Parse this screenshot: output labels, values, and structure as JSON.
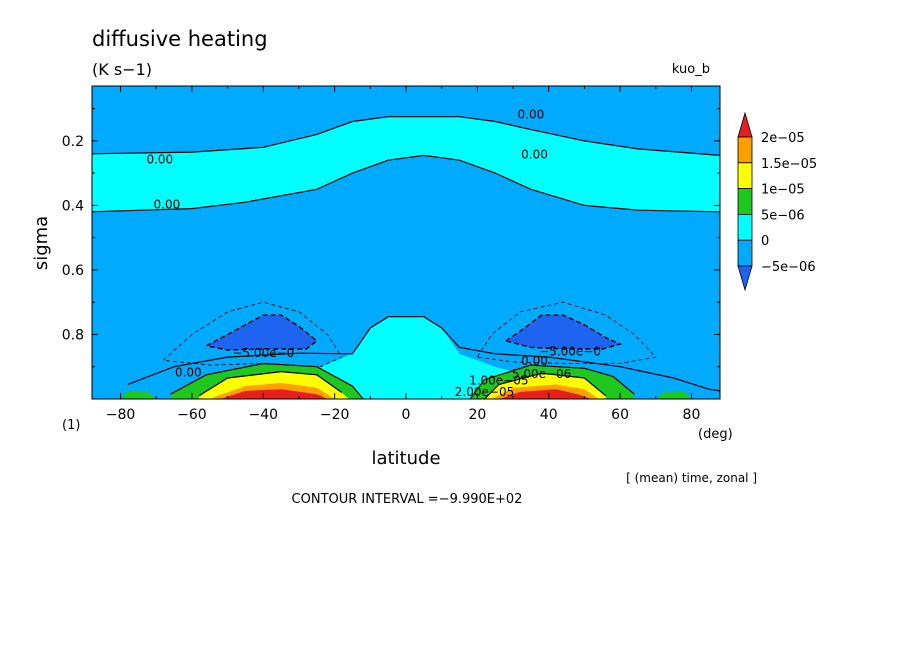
{
  "chart_data": {
    "type": "heatmap",
    "title": "diffusive heating",
    "units": "(K s−1)",
    "run_label": "kuo_b",
    "xlabel": "latitude",
    "x_unit": "(deg)",
    "ylabel": "sigma",
    "y_axis_note": "(1)",
    "xlim": [
      -88,
      88
    ],
    "ylim": [
      1.0,
      0.03
    ],
    "x_ticks": [
      -80,
      -60,
      -40,
      -20,
      0,
      20,
      40,
      60,
      80
    ],
    "x_tick_labels": [
      "−80",
      "−60",
      "−40",
      "−20",
      "0",
      "20",
      "40",
      "60",
      "80"
    ],
    "y_ticks": [
      0.2,
      0.4,
      0.6,
      0.8
    ],
    "y_tick_labels": [
      "0.2",
      "0.4",
      "0.6",
      "0.8"
    ],
    "averaging_note": "[ (mean) time, zonal ]",
    "contour_interval_text": "CONTOUR INTERVAL =−9.990E+02",
    "colorbar": {
      "labels": [
        "2e−05",
        "1.5e−05",
        "1e−05",
        "5e−06",
        "0",
        "−5e−06"
      ],
      "levels": [
        -5e-06,
        0,
        5e-06,
        1e-05,
        1.5e-05,
        2e-05
      ],
      "colors": [
        "#1e64f0",
        "#00aaff",
        "#00ffff",
        "#1ec81e",
        "#ffff00",
        "#ffa000",
        "#e61e1e"
      ]
    },
    "regions": [
      {
        "level": "0 to 5e-06",
        "color": "#00ffff",
        "upper": [
          [
            -88,
            0.24
          ],
          [
            -60,
            0.235
          ],
          [
            -40,
            0.22
          ],
          [
            -25,
            0.18
          ],
          [
            -15,
            0.14
          ],
          [
            -5,
            0.125
          ],
          [
            5,
            0.125
          ],
          [
            15,
            0.125
          ],
          [
            25,
            0.14
          ],
          [
            35,
            0.165
          ],
          [
            50,
            0.2
          ],
          [
            65,
            0.225
          ],
          [
            88,
            0.245
          ]
        ],
        "lower": [
          [
            -88,
            0.42
          ],
          [
            -60,
            0.41
          ],
          [
            -45,
            0.39
          ],
          [
            -25,
            0.35
          ],
          [
            -15,
            0.3
          ],
          [
            -5,
            0.26
          ],
          [
            5,
            0.245
          ],
          [
            15,
            0.26
          ],
          [
            25,
            0.3
          ],
          [
            35,
            0.35
          ],
          [
            50,
            0.4
          ],
          [
            65,
            0.415
          ],
          [
            88,
            0.42
          ]
        ]
      },
      {
        "level": "0 to 5e-06",
        "color": "#00ffff",
        "outline": [
          [
            -60,
            0.985
          ],
          [
            -40,
            0.955
          ],
          [
            -25,
            0.905
          ],
          [
            -15,
            0.86
          ],
          [
            -10,
            0.78
          ],
          [
            -5,
            0.745
          ],
          [
            5,
            0.745
          ],
          [
            10,
            0.78
          ],
          [
            15,
            0.86
          ],
          [
            25,
            0.9
          ],
          [
            40,
            0.945
          ],
          [
            60,
            0.985
          ],
          [
            60,
            1.0
          ],
          [
            -60,
            1.0
          ]
        ]
      },
      {
        "level": "below -5e-06",
        "color": "#1e64f0",
        "outline": [
          [
            -56,
            0.835
          ],
          [
            -50,
            0.8
          ],
          [
            -45,
            0.77
          ],
          [
            -40,
            0.74
          ],
          [
            -35,
            0.74
          ],
          [
            -30,
            0.775
          ],
          [
            -25,
            0.82
          ],
          [
            -28,
            0.845
          ],
          [
            -40,
            0.845
          ],
          [
            -50,
            0.848
          ]
        ]
      },
      {
        "level": "below -5e-06",
        "color": "#1e64f0",
        "outline": [
          [
            28,
            0.82
          ],
          [
            32,
            0.79
          ],
          [
            38,
            0.74
          ],
          [
            44,
            0.74
          ],
          [
            50,
            0.77
          ],
          [
            56,
            0.81
          ],
          [
            60,
            0.83
          ],
          [
            55,
            0.845
          ],
          [
            45,
            0.845
          ],
          [
            35,
            0.84
          ]
        ]
      },
      {
        "level": "5e-06 to 1e-05",
        "color": "#1ec81e",
        "outline": [
          [
            -66,
            0.985
          ],
          [
            -56,
            0.925
          ],
          [
            -40,
            0.89
          ],
          [
            -25,
            0.9
          ],
          [
            -15,
            0.96
          ],
          [
            -12,
            1.0
          ],
          [
            -66,
            1.0
          ]
        ]
      },
      {
        "level": "5e-06 to 1e-05",
        "color": "#1ec81e",
        "outline": [
          [
            18,
            1.0
          ],
          [
            22,
            0.94
          ],
          [
            35,
            0.895
          ],
          [
            50,
            0.905
          ],
          [
            58,
            0.93
          ],
          [
            64,
            0.985
          ],
          [
            64,
            1.0
          ]
        ]
      },
      {
        "level": "1e-05 to 1.5e-05",
        "color": "#ffff00",
        "outline": [
          [
            -58,
            0.99
          ],
          [
            -50,
            0.935
          ],
          [
            -35,
            0.915
          ],
          [
            -25,
            0.925
          ],
          [
            -18,
            0.98
          ],
          [
            -16,
            1.0
          ],
          [
            -58,
            1.0
          ]
        ]
      },
      {
        "level": "1e-05 to 1.5e-05",
        "color": "#ffff00",
        "outline": [
          [
            22,
            1.0
          ],
          [
            26,
            0.955
          ],
          [
            38,
            0.92
          ],
          [
            50,
            0.935
          ],
          [
            56,
            0.99
          ],
          [
            56,
            1.0
          ]
        ]
      },
      {
        "level": "1.5e-05 to 2e-05",
        "color": "#ffa000",
        "outline": [
          [
            -54,
            0.995
          ],
          [
            -45,
            0.96
          ],
          [
            -35,
            0.95
          ],
          [
            -25,
            0.965
          ],
          [
            -20,
            1.0
          ],
          [
            -54,
            1.0
          ]
        ]
      },
      {
        "level": "1.5e-05 to 2e-05",
        "color": "#ffa000",
        "outline": [
          [
            24,
            1.0
          ],
          [
            30,
            0.965
          ],
          [
            42,
            0.955
          ],
          [
            50,
            0.97
          ],
          [
            54,
            1.0
          ]
        ]
      },
      {
        "level": "above 2e-05",
        "color": "#e61e1e",
        "outline": [
          [
            -52,
            1.0
          ],
          [
            -45,
            0.975
          ],
          [
            -35,
            0.97
          ],
          [
            -25,
            0.985
          ],
          [
            -22,
            1.0
          ]
        ]
      },
      {
        "level": "above 2e-05",
        "color": "#e61e1e",
        "outline": [
          [
            26,
            1.0
          ],
          [
            32,
            0.978
          ],
          [
            42,
            0.97
          ],
          [
            48,
            0.985
          ],
          [
            52,
            1.0
          ]
        ]
      },
      {
        "level": "5e-06 to 1e-05",
        "color": "#1ec81e",
        "outline": [
          [
            -80,
            1.0
          ],
          [
            -78,
            0.975
          ],
          [
            -72,
            0.98
          ],
          [
            -70,
            1.0
          ]
        ]
      },
      {
        "level": "5e-06 to 1e-05",
        "color": "#1ec81e",
        "outline": [
          [
            70,
            1.0
          ],
          [
            72,
            0.98
          ],
          [
            78,
            0.978
          ],
          [
            80,
            1.0
          ]
        ]
      }
    ],
    "contours": [
      {
        "style": "solid",
        "points": [
          [
            -88,
            0.24
          ],
          [
            -60,
            0.235
          ],
          [
            -40,
            0.22
          ],
          [
            -25,
            0.18
          ],
          [
            -15,
            0.14
          ],
          [
            -5,
            0.125
          ],
          [
            5,
            0.125
          ],
          [
            15,
            0.125
          ],
          [
            25,
            0.14
          ],
          [
            35,
            0.165
          ],
          [
            50,
            0.2
          ],
          [
            65,
            0.225
          ],
          [
            88,
            0.245
          ]
        ]
      },
      {
        "style": "solid",
        "points": [
          [
            -88,
            0.42
          ],
          [
            -60,
            0.41
          ],
          [
            -45,
            0.39
          ],
          [
            -25,
            0.35
          ],
          [
            -15,
            0.3
          ],
          [
            -5,
            0.26
          ],
          [
            5,
            0.245
          ],
          [
            15,
            0.26
          ],
          [
            25,
            0.3
          ],
          [
            35,
            0.35
          ],
          [
            50,
            0.4
          ],
          [
            65,
            0.415
          ],
          [
            88,
            0.42
          ]
        ]
      },
      {
        "style": "solid",
        "points": [
          [
            -78,
            0.955
          ],
          [
            -65,
            0.9
          ],
          [
            -50,
            0.87
          ],
          [
            -30,
            0.858
          ],
          [
            -15,
            0.86
          ],
          [
            -10,
            0.78
          ],
          [
            -5,
            0.745
          ],
          [
            5,
            0.745
          ],
          [
            10,
            0.78
          ],
          [
            15,
            0.84
          ],
          [
            25,
            0.86
          ],
          [
            40,
            0.87
          ],
          [
            60,
            0.9
          ],
          [
            75,
            0.935
          ],
          [
            85,
            0.97
          ],
          [
            88,
            0.975
          ]
        ]
      },
      {
        "style": "dashed",
        "points": [
          [
            -56,
            0.835
          ],
          [
            -50,
            0.8
          ],
          [
            -45,
            0.77
          ],
          [
            -40,
            0.74
          ],
          [
            -35,
            0.74
          ],
          [
            -30,
            0.775
          ],
          [
            -25,
            0.82
          ],
          [
            -28,
            0.845
          ],
          [
            -40,
            0.845
          ],
          [
            -50,
            0.848
          ],
          [
            -56,
            0.835
          ]
        ]
      },
      {
        "style": "dashed",
        "points": [
          [
            28,
            0.82
          ],
          [
            32,
            0.79
          ],
          [
            38,
            0.74
          ],
          [
            44,
            0.74
          ],
          [
            50,
            0.77
          ],
          [
            56,
            0.81
          ],
          [
            60,
            0.83
          ],
          [
            55,
            0.845
          ],
          [
            45,
            0.845
          ],
          [
            35,
            0.84
          ],
          [
            28,
            0.82
          ]
        ]
      },
      {
        "style": "dashed-thin",
        "points": [
          [
            -68,
            0.88
          ],
          [
            -60,
            0.8
          ],
          [
            -50,
            0.73
          ],
          [
            -40,
            0.7
          ],
          [
            -30,
            0.73
          ],
          [
            -22,
            0.8
          ],
          [
            -18,
            0.87
          ],
          [
            -24,
            0.9
          ],
          [
            -40,
            0.89
          ],
          [
            -55,
            0.895
          ],
          [
            -68,
            0.88
          ]
        ]
      },
      {
        "style": "dashed-thin",
        "points": [
          [
            20,
            0.87
          ],
          [
            24,
            0.8
          ],
          [
            32,
            0.73
          ],
          [
            44,
            0.7
          ],
          [
            56,
            0.74
          ],
          [
            64,
            0.8
          ],
          [
            70,
            0.87
          ],
          [
            60,
            0.89
          ],
          [
            45,
            0.89
          ],
          [
            30,
            0.885
          ],
          [
            20,
            0.87
          ]
        ]
      },
      {
        "style": "solid",
        "points": [
          [
            -66,
            0.985
          ],
          [
            -56,
            0.925
          ],
          [
            -40,
            0.89
          ],
          [
            -25,
            0.9
          ],
          [
            -15,
            0.96
          ],
          [
            -12,
            1.0
          ]
        ]
      },
      {
        "style": "solid",
        "points": [
          [
            18,
            1.0
          ],
          [
            22,
            0.94
          ],
          [
            35,
            0.895
          ],
          [
            50,
            0.905
          ],
          [
            58,
            0.93
          ],
          [
            64,
            0.985
          ]
        ]
      },
      {
        "style": "solid",
        "points": [
          [
            -58,
            0.99
          ],
          [
            -50,
            0.935
          ],
          [
            -35,
            0.915
          ],
          [
            -25,
            0.925
          ],
          [
            -18,
            0.98
          ]
        ]
      },
      {
        "style": "solid",
        "points": [
          [
            22,
            1.0
          ],
          [
            26,
            0.955
          ],
          [
            38,
            0.92
          ],
          [
            50,
            0.935
          ],
          [
            56,
            0.99
          ]
        ]
      }
    ],
    "contour_labels": [
      {
        "text": "0.00",
        "x": -69,
        "y": 0.27
      },
      {
        "text": "0.00",
        "x": -67,
        "y": 0.41
      },
      {
        "text": "0.00",
        "x": 35,
        "y": 0.13
      },
      {
        "text": "0.00",
        "x": 36,
        "y": 0.255
      },
      {
        "text": "0.00",
        "x": -61,
        "y": 0.93
      },
      {
        "text": "0.00",
        "x": 36,
        "y": 0.895
      },
      {
        "text": "−5.00e−0",
        "x": -40,
        "y": 0.87
      },
      {
        "text": "−5.00e−0",
        "x": 46,
        "y": 0.865
      },
      {
        "text": "5.00e−06",
        "x": 38,
        "y": 0.935
      },
      {
        "text": "1.00e−05",
        "x": 26,
        "y": 0.955
      },
      {
        "text": "2.00e−05",
        "x": 22,
        "y": 0.99
      }
    ]
  }
}
